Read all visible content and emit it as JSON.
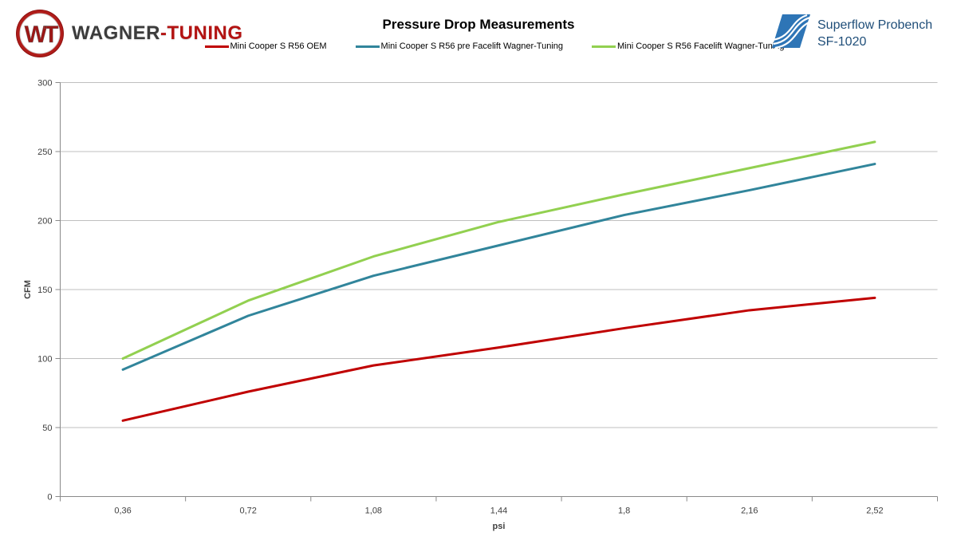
{
  "header": {
    "logo": {
      "monogram": "WT",
      "wordmark_primary": "WAGNER",
      "wordmark_separator": "-",
      "wordmark_accent": "TUNING"
    },
    "bench_logo": {
      "line1": "Superflow Probench",
      "line2": "SF-1020"
    }
  },
  "chart_data": {
    "type": "line",
    "title": "Pressure Drop Measurements",
    "xlabel": "psi",
    "ylabel": "CFM",
    "x_tick_labels": [
      "0,36",
      "0,72",
      "1,08",
      "1,44",
      "1,8",
      "2,16",
      "2,52"
    ],
    "x_values": [
      0.36,
      0.72,
      1.08,
      1.44,
      1.8,
      2.16,
      2.52
    ],
    "ylim": [
      0,
      300
    ],
    "y_ticks": [
      0,
      50,
      100,
      150,
      200,
      250,
      300
    ],
    "grid": true,
    "legend_position": "top",
    "series": [
      {
        "name": "Mini Cooper S R56 OEM",
        "color": "#C00000",
        "values": [
          55,
          76,
          95,
          108,
          122,
          135,
          144
        ]
      },
      {
        "name": "Mini Cooper S R56 pre Facelift Wagner-Tuning",
        "color": "#31859B",
        "values": [
          92,
          131,
          160,
          182,
          204,
          222,
          241
        ]
      },
      {
        "name": "Mini Cooper S R56 Facelift Wagner-Tuning",
        "color": "#92D050",
        "values": [
          100,
          142,
          174,
          199,
          219,
          238,
          257
        ]
      }
    ]
  },
  "colors": {
    "grid": "#BFBFBF",
    "axis": "#898989",
    "tick_text": "#404040",
    "logo_red": "#B31312",
    "logo_dark": "#3C3C3C",
    "superflow_blue": "#2E75B6",
    "superflow_text": "#1F4E79"
  }
}
